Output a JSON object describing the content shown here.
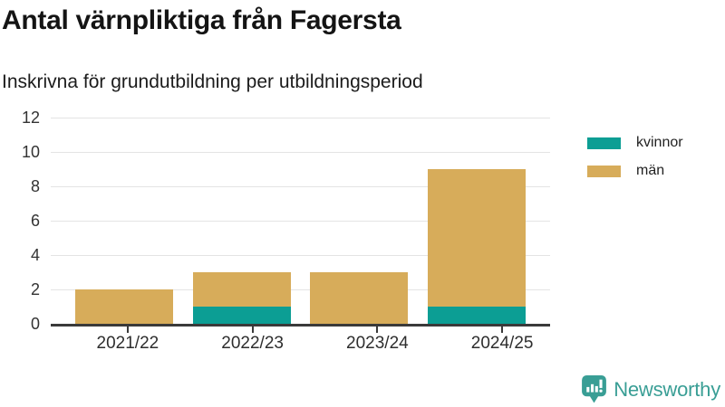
{
  "chart_data": {
    "type": "bar",
    "stacked": true,
    "title": "Antal värnpliktiga från Fagersta",
    "subtitle": "Inskrivna för grundutbildning per utbildningsperiod",
    "categories": [
      "2021/22",
      "2022/23",
      "2023/24",
      "2024/25"
    ],
    "series": [
      {
        "name": "kvinnor",
        "color": "#0c9e94",
        "values": [
          0,
          1,
          0,
          1
        ]
      },
      {
        "name": "män",
        "color": "#d7ac5a",
        "values": [
          2,
          2,
          3,
          8
        ]
      }
    ],
    "yticks": [
      0,
      2,
      4,
      6,
      8,
      10,
      12
    ],
    "ylim": [
      0,
      12
    ],
    "xlabel": "",
    "ylabel": "",
    "grid": true,
    "legend_position": "top-right"
  },
  "branding": {
    "logo_text": "Newsworthy",
    "logo_color": "#399e95",
    "logo_icon": "newsworthy-speech-bubble-bar-chart-icon"
  },
  "style": {
    "background": "#ffffff",
    "axis_color": "#3a3a3a",
    "grid_color": "#e4e4e4",
    "text_color": "#2e2e2e"
  }
}
